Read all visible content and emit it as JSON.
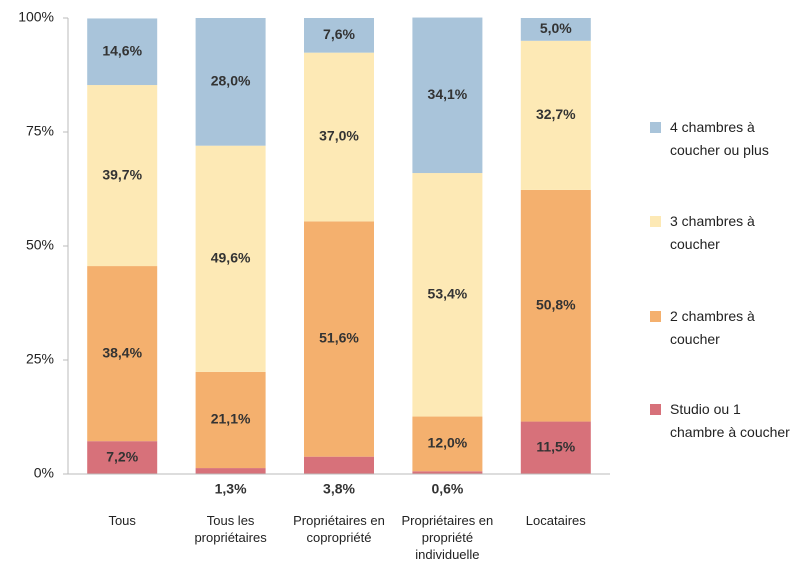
{
  "chart_data": {
    "type": "stacked_bar",
    "categories": [
      "Tous",
      "Tous les propriétaires",
      "Propriétaires en copropriété",
      "Propriétaires en propriété individuelle",
      "Locataires"
    ],
    "series": [
      {
        "name": "Studio ou 1 chambre à coucher",
        "color": "#d7717a",
        "values": [
          7.2,
          1.3,
          3.8,
          0.6,
          11.5
        ],
        "value_labels": [
          "7,2%",
          "1,3%",
          "3,8%",
          "0,6%",
          "11,5%"
        ]
      },
      {
        "name": "2 chambres à coucher",
        "color": "#f4b06e",
        "values": [
          38.4,
          21.1,
          51.6,
          12.0,
          50.8
        ],
        "value_labels": [
          "38,4%",
          "21,1%",
          "51,6%",
          "12,0%",
          "50,8%"
        ]
      },
      {
        "name": "3 chambres à coucher",
        "color": "#fde9b5",
        "values": [
          39.7,
          49.6,
          37.0,
          53.4,
          32.7
        ],
        "value_labels": [
          "39,7%",
          "49,6%",
          "37,0%",
          "53,4%",
          "32,7%"
        ]
      },
      {
        "name": "4 chambres à coucher ou plus",
        "color": "#a9c4da",
        "values": [
          14.6,
          28.0,
          7.6,
          34.1,
          5.0
        ],
        "value_labels": [
          "14,6%",
          "28,0%",
          "7,6%",
          "34,1%",
          "5,0%"
        ]
      }
    ],
    "ylim": [
      0,
      100
    ],
    "yticks": [
      {
        "value": 0,
        "label": "0%"
      },
      {
        "value": 25,
        "label": "25%"
      },
      {
        "value": 50,
        "label": "50%"
      },
      {
        "value": 75,
        "label": "75%"
      },
      {
        "value": 100,
        "label": "100%"
      }
    ],
    "legend": "right"
  }
}
